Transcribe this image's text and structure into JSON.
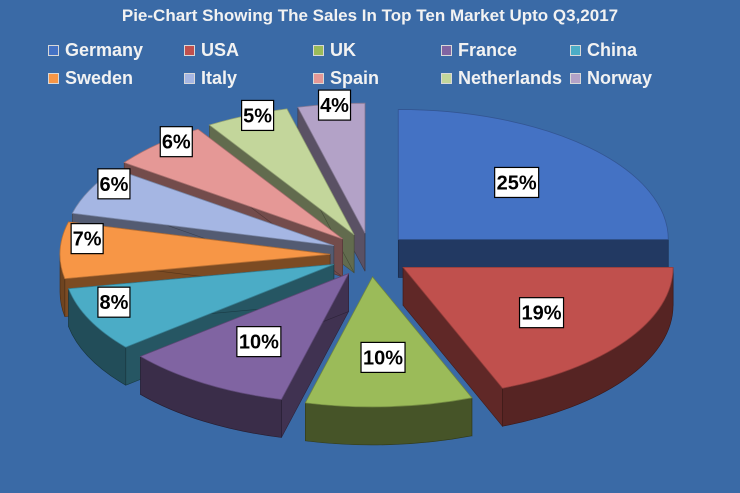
{
  "chart_data": {
    "type": "pie",
    "title": "Pie-Chart Showing The Sales In Top Ten Market Upto Q3,2017",
    "legend_position": "top",
    "slices": [
      {
        "name": "Germany",
        "value": 25,
        "label": "25%",
        "color": "#4472c4"
      },
      {
        "name": "USA",
        "value": 19,
        "label": "19%",
        "color": "#c0504d"
      },
      {
        "name": "UK",
        "value": 10,
        "label": "10%",
        "color": "#9bbb59"
      },
      {
        "name": "France",
        "value": 10,
        "label": "10%",
        "color": "#8064a2"
      },
      {
        "name": "China",
        "value": 8,
        "label": "8%",
        "color": "#4bacc6"
      },
      {
        "name": "Sweden",
        "value": 7,
        "label": "7%",
        "color": "#f79646"
      },
      {
        "name": "Italy",
        "value": 6,
        "label": "6%",
        "color": "#a5b6e3"
      },
      {
        "name": "Spain",
        "value": 6,
        "label": "6%",
        "color": "#e59896"
      },
      {
        "name": "Netherlands",
        "value": 5,
        "label": "5%",
        "color": "#c3d69b"
      },
      {
        "name": "Norway",
        "value": 4,
        "label": "4%",
        "color": "#b3a2c7"
      }
    ]
  }
}
